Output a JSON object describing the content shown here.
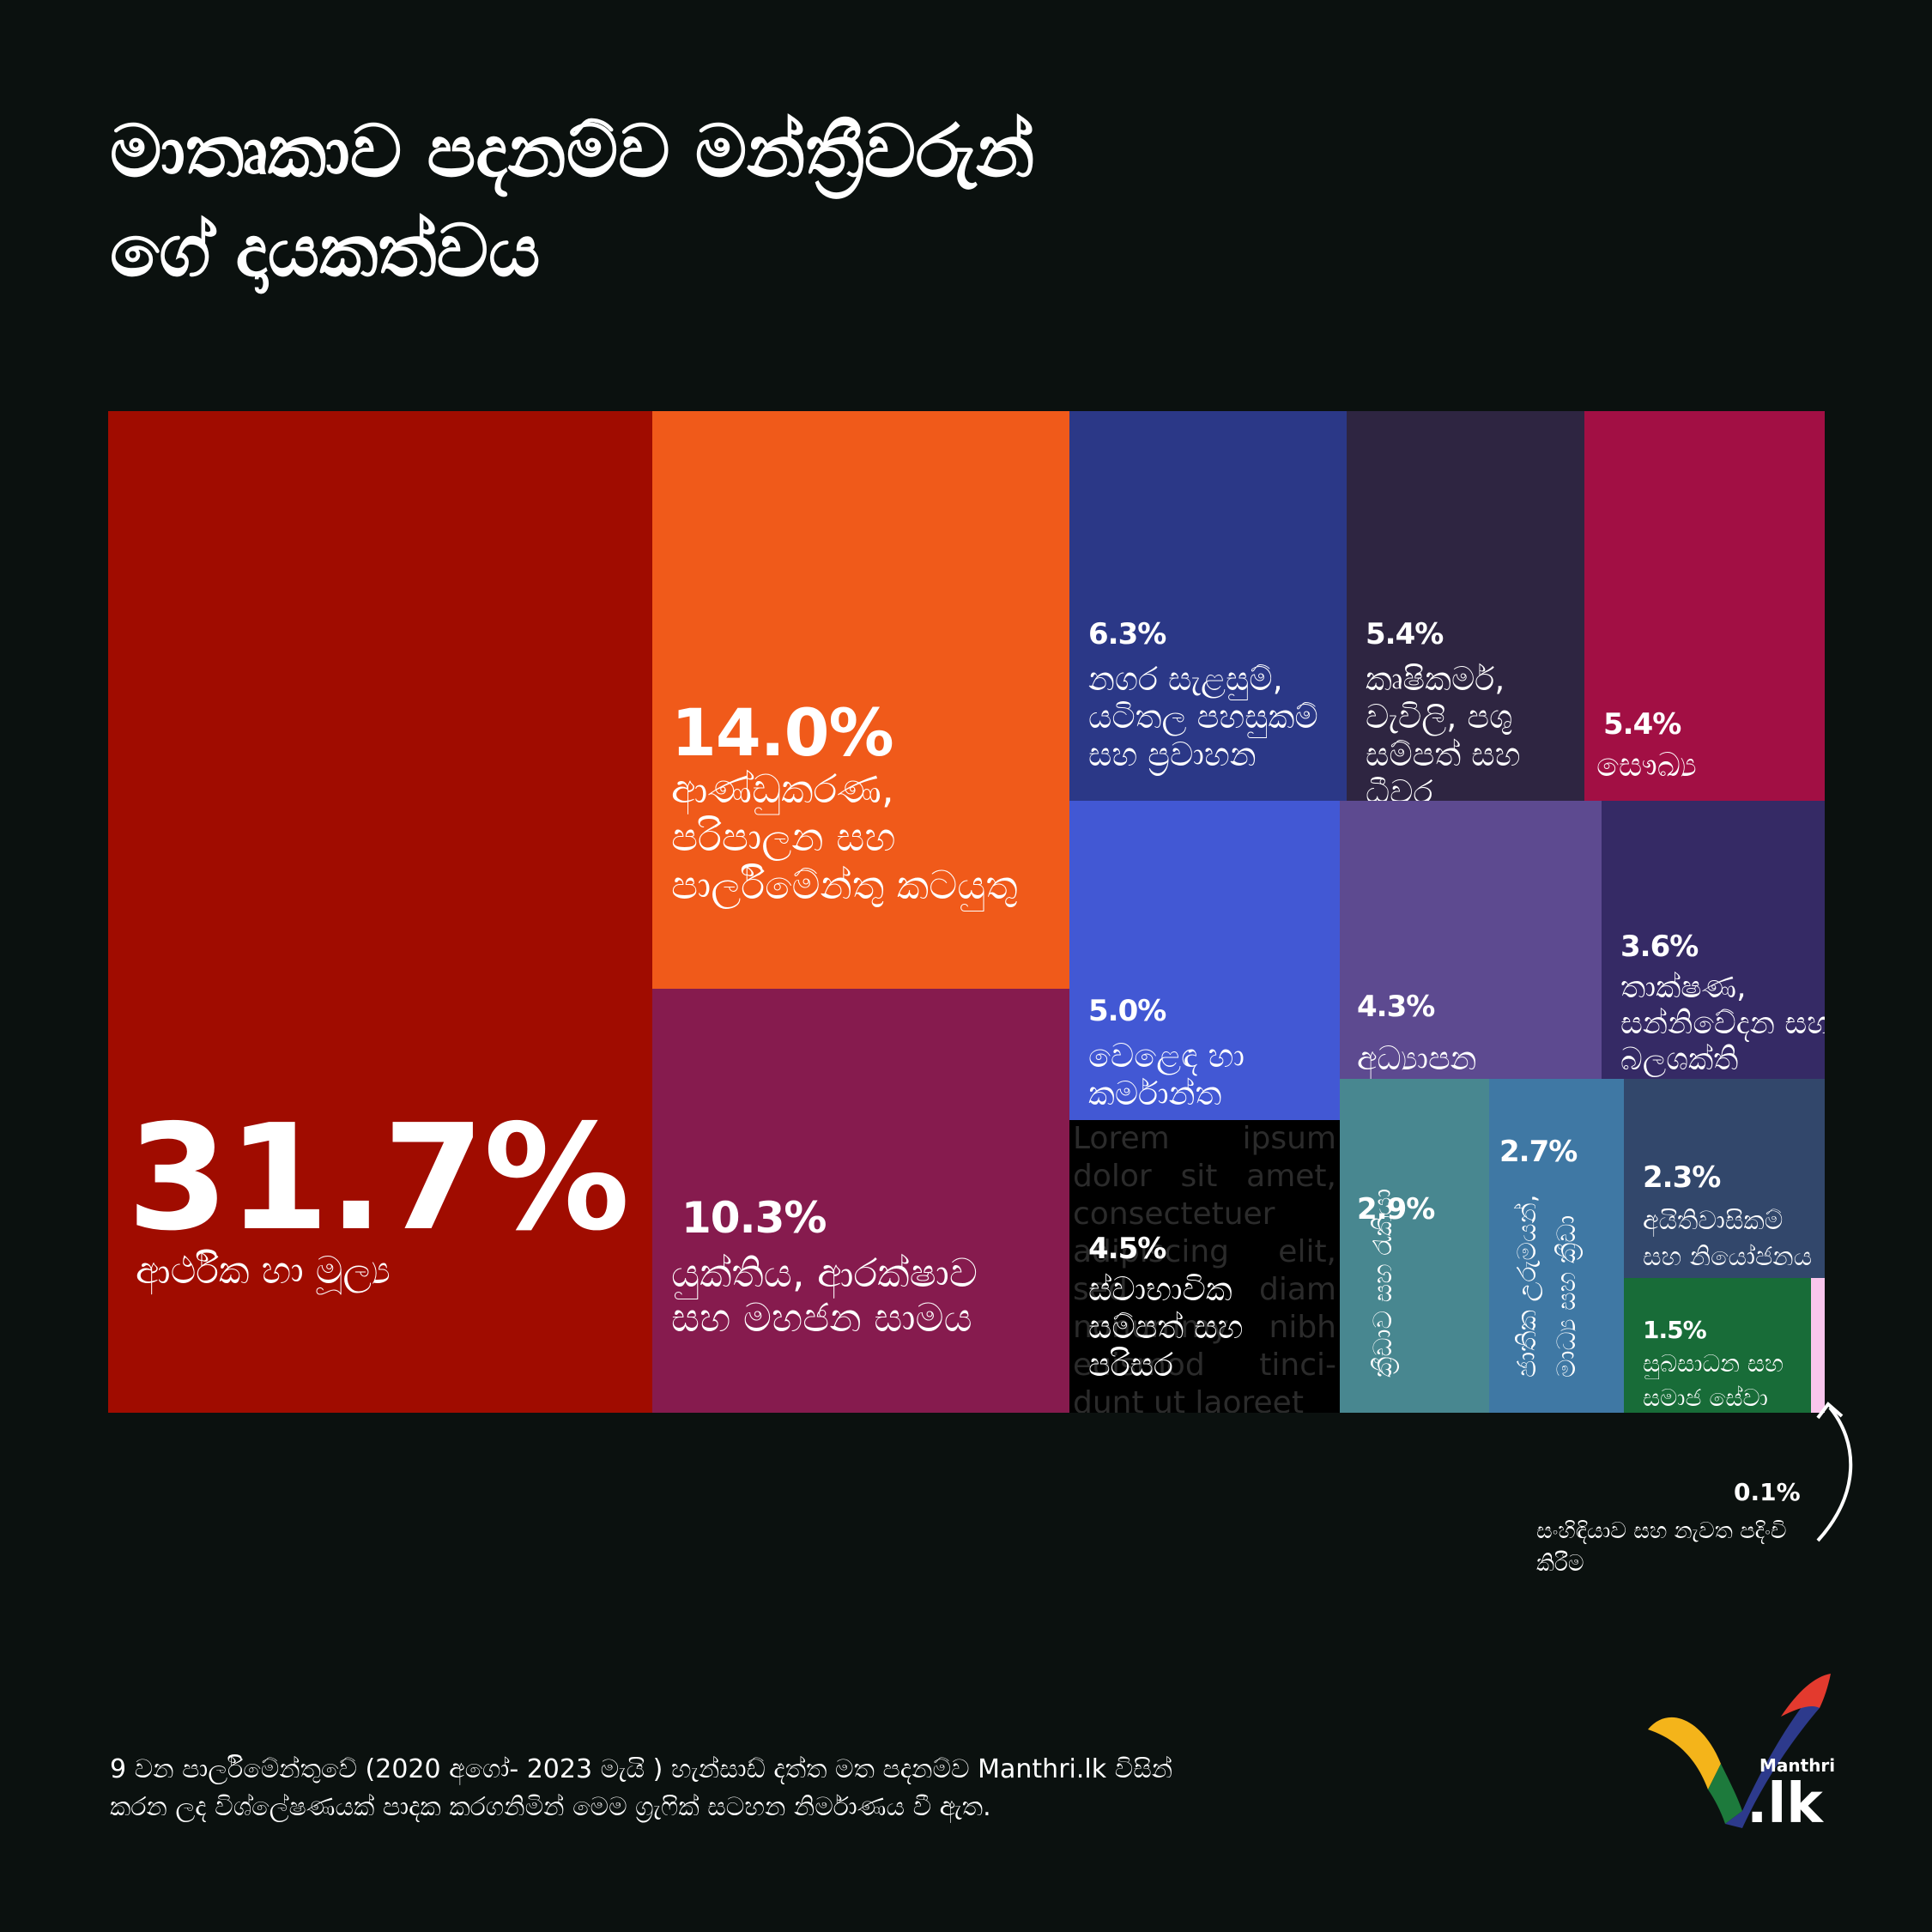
{
  "title": [
    "මාතෘකාව පදනම්ව මන්ත්‍රීවරුන්",
    "ගේ දායකත්වය"
  ],
  "chart_data": {
    "type": "treemap",
    "title": "මාතෘකාව පදනම්ව මන්ත්‍රීවරුන් ගේ දායකත්වය",
    "items": [
      {
        "value": 31.7,
        "pct_label": "31.7%",
        "label": "ආර්ථික හා මූල්‍ය",
        "color": "#a00c00"
      },
      {
        "value": 14.0,
        "pct_label": "14.0%",
        "label": "ආණ්ඩුකරණ, පරිපාලන සහ පාර්ලිමේන්තු කටයුතු",
        "color": "#f05a1a"
      },
      {
        "value": 10.3,
        "pct_label": "10.3%",
        "label": "යුක්තිය, ආරක්ෂාව සහ මහජන සාමය",
        "color": "#861b4e"
      },
      {
        "value": 6.3,
        "pct_label": "6.3%",
        "label": "නගර සැළසුම්, යටිතල පහසුකම් සහ ප්‍රවාහන",
        "color": "#2b3887"
      },
      {
        "value": 5.4,
        "pct_label": "5.4%",
        "label": "කෘෂිකර්ම, වැවිලි, පශු සම්පත් සහ ධීවර",
        "color": "#2e2541"
      },
      {
        "value": 5.4,
        "pct_label": "5.4%",
        "label": "සෞඛ්‍ය",
        "color": "#a20f44"
      },
      {
        "value": 5.0,
        "pct_label": "5.0%",
        "label": "වෙළෙඳ හා කර්මාන්ත",
        "color": "#4258d4"
      },
      {
        "value": 4.5,
        "pct_label": "4.5%",
        "label": "ස්වාභාවික සම්පත් සහ පරිසර",
        "color": "#000000"
      },
      {
        "value": 4.3,
        "pct_label": "4.3%",
        "label": "අධ්‍යාපන",
        "color": "#5d4a90"
      },
      {
        "value": 3.6,
        "pct_label": "3.6%",
        "label": "තාක්ෂණ, සන්නිවේදන සහ බලශක්ති",
        "color": "#352a65"
      },
      {
        "value": 2.9,
        "pct_label": "2.9%",
        "label": "ක්‍රීඩාව සහ රැකියා",
        "color": "#488790"
      },
      {
        "value": 2.7,
        "pct_label": "2.7%",
        "label": "ජාතික උරුමයන්, මාධ්‍ය සහ ක්‍රීඩා",
        "color": "#3f78a4"
      },
      {
        "value": 2.3,
        "pct_label": "2.3%",
        "label": "අයිතිවාසිකම් සහ නියෝජනය",
        "color": "#32476b"
      },
      {
        "value": 1.5,
        "pct_label": "1.5%",
        "label": "සුබසාධන සහ සමාජ සේවා",
        "color": "#186c38"
      },
      {
        "value": 0.1,
        "pct_label": "0.1%",
        "label": "සංහිඳියාව සහ නැවත පදිංචි කිරීම",
        "color": "#f9c6ec"
      }
    ]
  },
  "filler_text": "Lorem ipsum dolor sit amet, consectetuer adipiscing elit, sed diam nonummy nibh euismod tinci- dunt ut laoreet",
  "footer": [
    "9 වන පාර්ලිමේන්තුවේ (2020 අගෝ- 2023 මැයි ) හැන්සාඩ් දත්ත මත පදනම්ව Manthri.lk විසින්",
    "කරන ලද විශ්ලේෂණයක් පාදක කරගනිමින් මෙම ග්‍රැෆික් සටහන නිර්මාණය වී ඇත."
  ],
  "logo": {
    "brand": "Manthri",
    "suffix": ".lk",
    "colors": [
      "#f4b41a",
      "#1d7a3c",
      "#2d3a8c",
      "#e33a2e"
    ]
  }
}
